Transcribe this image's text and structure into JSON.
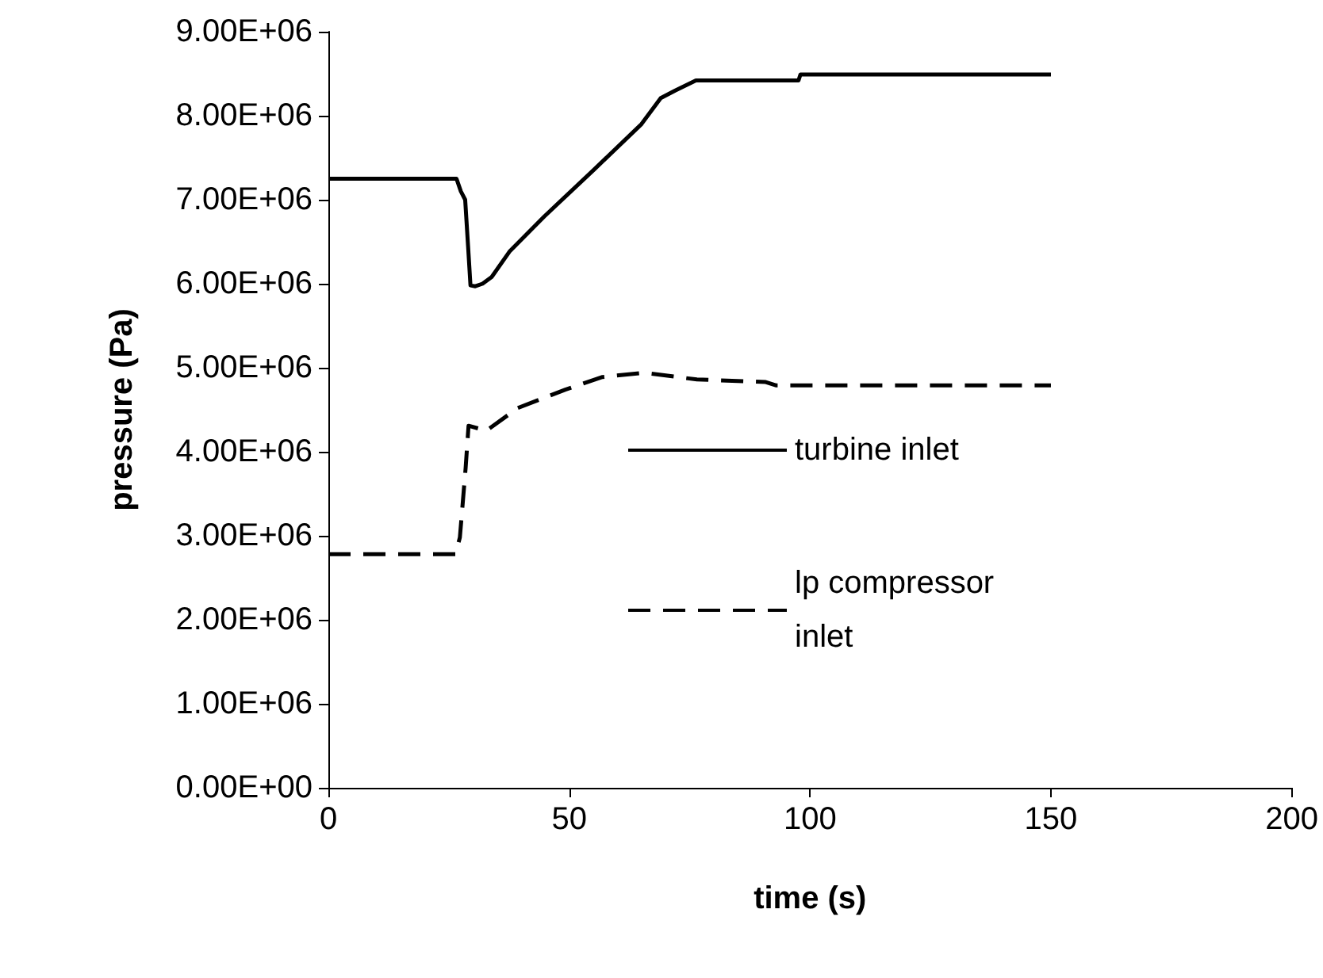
{
  "chart_data": {
    "type": "line",
    "xlabel": "time (s)",
    "ylabel": "pressure (Pa)",
    "xlim": [
      0,
      200
    ],
    "xticks": [
      0,
      50,
      100,
      150,
      200
    ],
    "ylim": [
      0,
      9000000
    ],
    "yticks": [
      {
        "value": 0,
        "label": "0.00E+00"
      },
      {
        "value": 1000000,
        "label": "1.00E+06"
      },
      {
        "value": 2000000,
        "label": "2.00E+06"
      },
      {
        "value": 3000000,
        "label": "3.00E+06"
      },
      {
        "value": 4000000,
        "label": "4.00E+06"
      },
      {
        "value": 5000000,
        "label": "5.00E+06"
      },
      {
        "value": 6000000,
        "label": "6.00E+06"
      },
      {
        "value": 7000000,
        "label": "7.00E+06"
      },
      {
        "value": 8000000,
        "label": "8.00E+06"
      },
      {
        "value": 9000000,
        "label": "9.00E+06"
      }
    ],
    "grid": false,
    "legend": "right",
    "marker": "none",
    "series": [
      {
        "name": "turbine inlet",
        "color": "#000000",
        "line_style": "solid",
        "x": [
          0,
          26.6,
          27.5,
          28.4,
          29.0,
          29.5,
          30.5,
          32,
          33.9,
          37.7,
          44.8,
          55,
          65,
          69,
          72,
          76.3,
          97.6,
          98,
          150
        ],
        "values": [
          7250000,
          7250000,
          7100000,
          7000000,
          6450000,
          5980000,
          5970000,
          6000000,
          6080000,
          6390000,
          6800000,
          7350000,
          7900000,
          8210000,
          8300000,
          8420000,
          8420000,
          8490000,
          8490000
        ]
      },
      {
        "name": "lp compressor inlet",
        "color": "#000000",
        "line_style": "dashed",
        "x": [
          0,
          26.4,
          27.3,
          28.5,
          29.1,
          32.8,
          39.3,
          49.2,
          56.9,
          65.6,
          76.5,
          90.8,
          93,
          150
        ],
        "values": [
          2780000,
          2780000,
          2980000,
          3810000,
          4310000,
          4250000,
          4520000,
          4740000,
          4890000,
          4940000,
          4860000,
          4830000,
          4790000,
          4790000
        ]
      }
    ]
  }
}
